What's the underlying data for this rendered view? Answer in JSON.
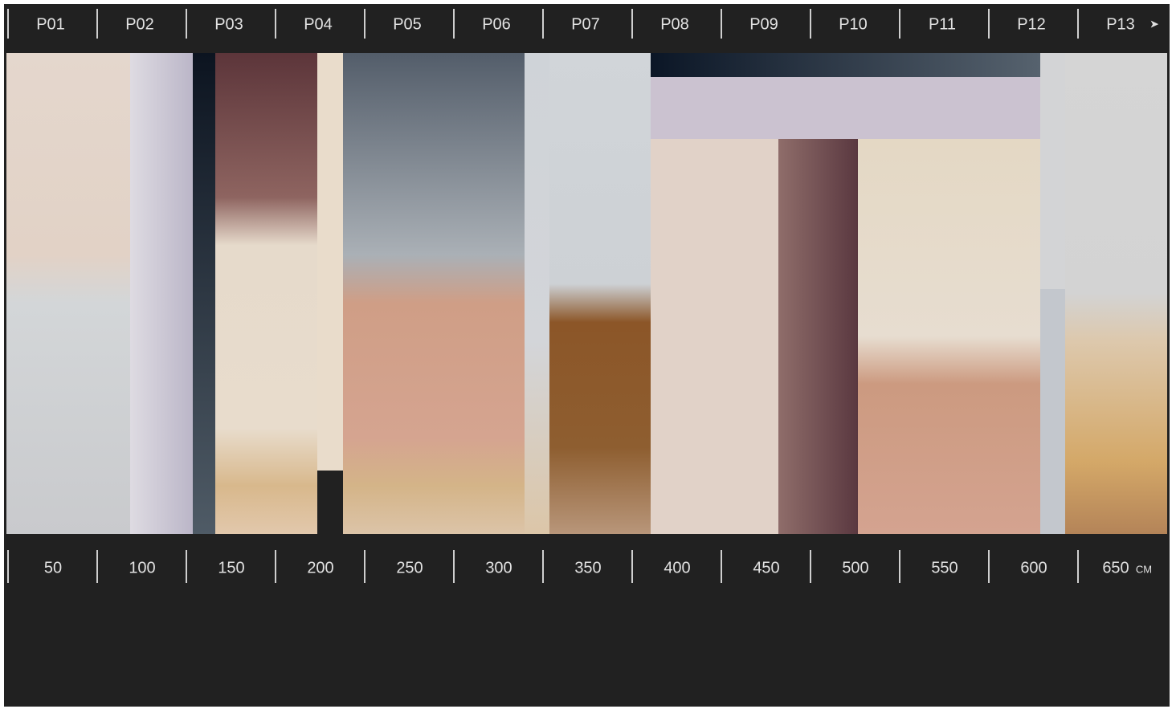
{
  "panels": [
    "P01",
    "P02",
    "P03",
    "P04",
    "P05",
    "P06",
    "P07",
    "P08",
    "P09",
    "P10",
    "P11",
    "P12",
    "P13"
  ],
  "ruler": {
    "marks": [
      50,
      100,
      150,
      200,
      250,
      300,
      350,
      400,
      450,
      500,
      550,
      600,
      650
    ],
    "unit": "CM"
  }
}
